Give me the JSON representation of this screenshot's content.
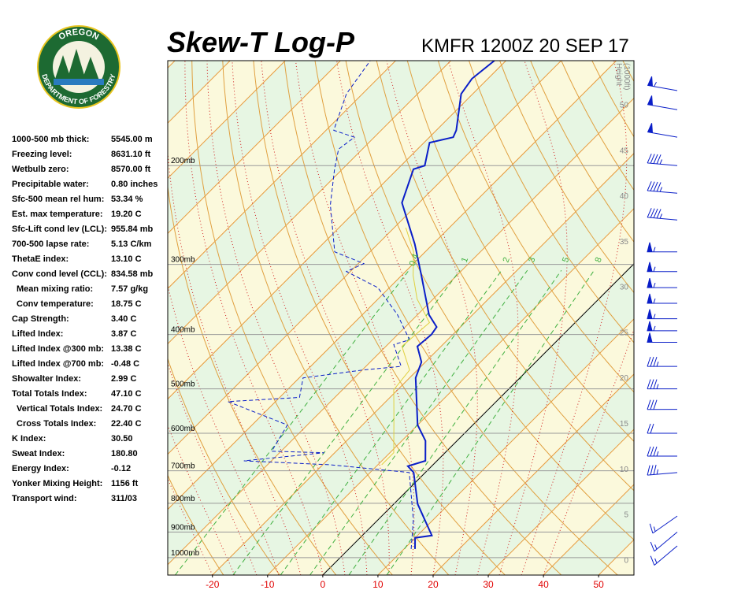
{
  "header": {
    "title": "Skew-T Log-P",
    "station": "KMFR 1200Z 20 SEP 17"
  },
  "logo": {
    "top": "OREGON",
    "bottom": "DEPARTMENT OF FORESTRY"
  },
  "indices": [
    {
      "label": "1000-500 mb thick:",
      "value": "5545.00 m"
    },
    {
      "label": "Freezing level:",
      "value": "8631.10 ft"
    },
    {
      "label": "Wetbulb zero:",
      "value": "8570.00 ft"
    },
    {
      "label": "Precipitable water:",
      "value": "0.80 inches"
    },
    {
      "label": "Sfc-500 mean rel hum:",
      "value": "53.34 %"
    },
    {
      "label": "Est. max temperature:",
      "value": "19.20 C"
    },
    {
      "label": "Sfc-Lift cond lev (LCL):",
      "value": "955.84 mb"
    },
    {
      "label": "700-500 lapse rate:",
      "value": "5.13 C/km"
    },
    {
      "label": "ThetaE index:",
      "value": "13.10 C"
    },
    {
      "label": "Conv cond level (CCL):",
      "value": "834.58 mb"
    },
    {
      "label": "Mean mixing ratio:",
      "value": "7.57 g/kg"
    },
    {
      "label": "Conv temperature:",
      "value": "18.75 C"
    },
    {
      "label": "Cap Strength:",
      "value": "3.40 C"
    },
    {
      "label": "Lifted Index:",
      "value": "3.87 C"
    },
    {
      "label": "Lifted Index @300 mb:",
      "value": "13.38 C"
    },
    {
      "label": "Lifted Index @700 mb:",
      "value": "-0.48 C"
    },
    {
      "label": "Showalter Index:",
      "value": "2.99 C"
    },
    {
      "label": "Total Totals Index:",
      "value": "47.10 C"
    },
    {
      "label": "Vertical Totals Index:",
      "value": "24.70 C"
    },
    {
      "label": "Cross Totals Index:",
      "value": "22.40 C"
    },
    {
      "label": "K Index:",
      "value": "30.50"
    },
    {
      "label": "Sweat Index:",
      "value": "180.80"
    },
    {
      "label": "Energy Index:",
      "value": "-0.12"
    },
    {
      "label": "Yonker Mixing Height:",
      "value": "1156 ft"
    },
    {
      "label": "Transport wind:",
      "value": "311/03"
    }
  ],
  "chart_data": {
    "type": "skewt",
    "xlim": [
      -28.1,
      56.4
    ],
    "xticks": [
      -20,
      -10,
      0,
      10,
      20,
      30,
      40,
      50
    ],
    "ylim": [
      1074,
      130
    ],
    "log_y": true,
    "yticks": [
      {
        "value": 200,
        "label": "200mb"
      },
      {
        "value": 300,
        "label": "300mb"
      },
      {
        "value": 400,
        "label": "400mb"
      },
      {
        "value": 500,
        "label": "500mb"
      },
      {
        "value": 600,
        "label": "600mb"
      },
      {
        "value": 700,
        "label": "700mb"
      },
      {
        "value": 800,
        "label": "800mb"
      },
      {
        "value": 900,
        "label": "900mb"
      },
      {
        "value": 1000,
        "label": "1000mb"
      }
    ],
    "height_title": [
      "Height",
      "(1000ft)"
    ],
    "height_lim": [
      -1.7,
      54.8
    ],
    "height_ticks": [
      0,
      5,
      10,
      15,
      20,
      25,
      30,
      35,
      40,
      45,
      50
    ],
    "mixing_ratios": [
      {
        "value": 0.4,
        "label": "0.4"
      },
      1,
      2,
      3,
      5,
      8
    ],
    "series": [
      {
        "color": "#0a1ec8",
        "style": "solid",
        "p": [
          965,
          922,
          913,
          802,
          705,
          687,
          672,
          619,
          580,
          478,
          448,
          420,
          400,
          388,
          369,
          314,
          276,
          233,
          203,
          200,
          182,
          178,
          173,
          149,
          140,
          130
        ],
        "values": [
          12.0,
          10.0,
          12.6,
          4.3,
          -2.1,
          -4.3,
          -2.1,
          -5.7,
          -10.0,
          -18.9,
          -20.7,
          -24.3,
          -23.9,
          -24.3,
          -27.9,
          -36.4,
          -43.3,
          -53.1,
          -57.1,
          -55.7,
          -59.0,
          -55.7,
          -56.4,
          -62.1,
          -62.9,
          -62.1
        ]
      },
      {
        "color": "#0a1ec8",
        "style": "dashed",
        "p": [
          965,
          856,
          705,
          683,
          672,
          650,
          646,
          580,
          527,
          518,
          478,
          463,
          456,
          417,
          409,
          369,
          330,
          309,
          299,
          285,
          235,
          203,
          187,
          178,
          173,
          149,
          130
        ],
        "values": [
          11.3,
          6.4,
          -2.9,
          -18.6,
          -35.0,
          -21.9,
          -31.7,
          -33.6,
          -48.6,
          -36.4,
          -39.3,
          -30.0,
          -23.6,
          -28.9,
          -26.9,
          -33.6,
          -42.1,
          -50.7,
          -49.0,
          -56.4,
          -65.7,
          -71.4,
          -74.3,
          -73.6,
          -78.6,
          -82.9,
          -84.6
        ]
      },
      {
        "color": "#e0d040",
        "style": "thin",
        "p": [
          683,
          650,
          562,
          502,
          463,
          420,
          381,
          346,
          314,
          285,
          258
        ],
        "values": [
          -9.3,
          -9.3,
          -15.7,
          -20.7,
          -21.4,
          -27.1,
          -26.4,
          -32.9,
          -37.9,
          -42.1,
          -47.9
        ]
      }
    ],
    "winds": {
      "color": "#0a1ec8",
      "p": [
        147,
        159,
        178,
        200,
        224,
        250,
        285,
        309,
        330,
        352,
        375,
        394,
        413,
        456,
        500,
        544,
        600,
        659,
        705,
        843,
        900,
        953
      ],
      "direction": [
        280,
        280,
        280,
        275,
        275,
        275,
        270,
        270,
        270,
        270,
        270,
        270,
        270,
        270,
        270,
        270,
        270,
        270,
        265,
        235,
        230,
        230
      ],
      "speed": [
        55,
        50,
        50,
        45,
        45,
        45,
        55,
        55,
        55,
        55,
        55,
        55,
        50,
        35,
        35,
        30,
        20,
        35,
        35,
        15,
        15,
        15
      ]
    }
  }
}
